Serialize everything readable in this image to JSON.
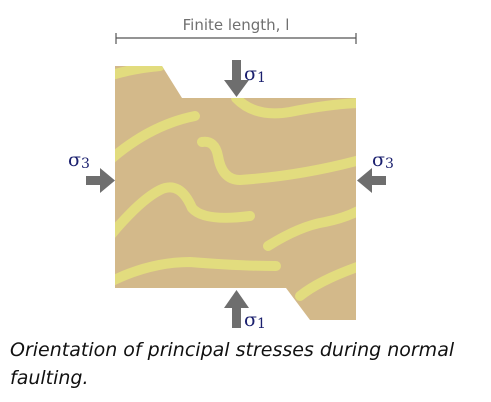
{
  "colors": {
    "rock": "#d3b98a",
    "bed": "#e2dc7e",
    "arrow": "#6e6e6e",
    "sigma_text": "#1a1f6e",
    "dim_line": "#555555",
    "dim_text": "#707070"
  },
  "labels": {
    "finite_length": "Finite length, l",
    "sigma": "σ",
    "sigma1_sub": "1",
    "sigma3_sub": "3"
  },
  "caption": "Orientation of principal stresses during normal faulting."
}
